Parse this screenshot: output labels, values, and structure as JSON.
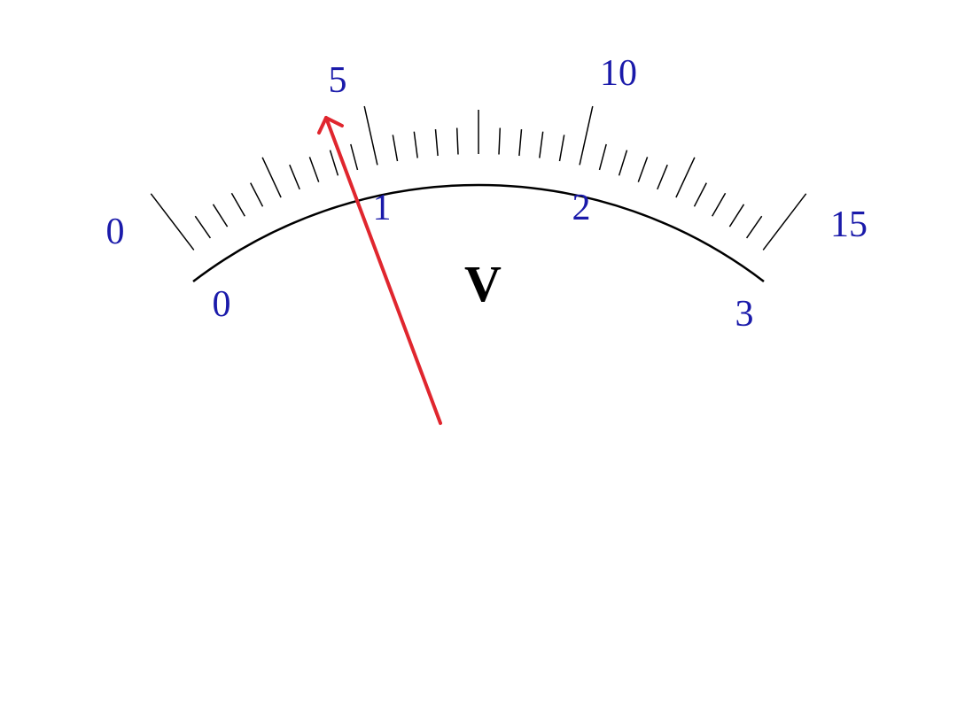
{
  "unit": "V",
  "scales": {
    "outer": {
      "min": 0,
      "max": 15,
      "labels": [
        "0",
        "5",
        "10",
        "15"
      ]
    },
    "inner": {
      "min": 0,
      "max": 3,
      "labels": [
        "0",
        "1",
        "2",
        "3"
      ]
    }
  },
  "divisions": 30,
  "needle": {
    "color": "#e0262e",
    "reading_fraction": 0.3
  },
  "colors": {
    "scale_text": "#1a1aaa",
    "needle": "#e0262e",
    "unit_text": "#000000"
  }
}
